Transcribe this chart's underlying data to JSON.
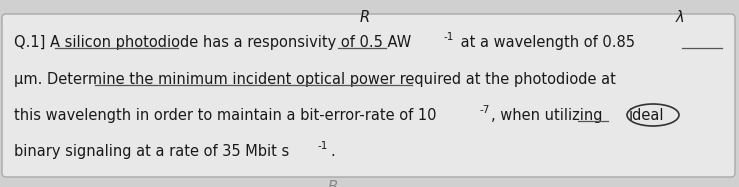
{
  "bg_color": "#d0d0d0",
  "box_facecolor": "#e8e8e8",
  "box_edgecolor": "#aaaaaa",
  "text_color": "#1a1a1a",
  "underline_color": "#555555",
  "circle_color": "#333333",
  "bottom_label_color": "#888888",
  "line1_prefix": "Q.1] A silicon photodiode has a responsivity of 0.5 AW",
  "line1_sup": "-1",
  "line1_suffix": " at a wavelength of 0.85",
  "line2": "μm. Determine the minimum incident optical power required at the photodiode at",
  "line3_pre": "this wavelength in order to maintain a bit-error-rate of 10",
  "line3_sup": "-7",
  "line3_mid": ", when utilizing",
  "line3_circle": "ideal",
  "line4_pre": "binary signaling at a rate of 35 Mbit s",
  "line4_sup": "-1",
  "line4_dot": ".",
  "label_R": "R",
  "label_lambda": "λ",
  "label_B": "B",
  "font_size": 10.5,
  "sup_font_size": 7.5
}
